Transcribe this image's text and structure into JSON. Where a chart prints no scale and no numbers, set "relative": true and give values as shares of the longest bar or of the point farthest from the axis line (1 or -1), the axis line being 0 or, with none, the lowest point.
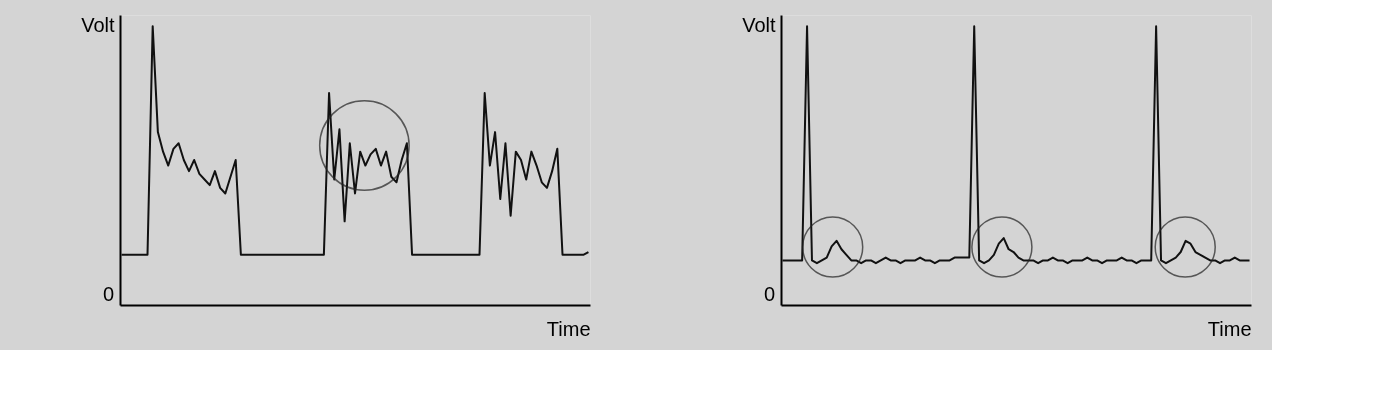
{
  "chart_data": [
    {
      "type": "line",
      "relative": true,
      "ylabel": "Volt",
      "xlabel": "Time",
      "annotations": [
        "0"
      ],
      "line_style": "solid",
      "categories": [
        null,
        null,
        null,
        null,
        null,
        null,
        null,
        null,
        null,
        null,
        null,
        null,
        null,
        null,
        null,
        null,
        null,
        null,
        null,
        null,
        null,
        null,
        null,
        null,
        null,
        null,
        null,
        null,
        null,
        null,
        null,
        null,
        null,
        null,
        null,
        null,
        null,
        null,
        null,
        null,
        null,
        null,
        null,
        null,
        null,
        null,
        null,
        null,
        null,
        null,
        null,
        null,
        null,
        null,
        null,
        null,
        null,
        null,
        null,
        null,
        null,
        null,
        null,
        null,
        null,
        null,
        null,
        null,
        null,
        null,
        null,
        null,
        null,
        null,
        null,
        null,
        null,
        null,
        null,
        null,
        null,
        null,
        null,
        null,
        null,
        null,
        null,
        null,
        null,
        null,
        null
      ],
      "series": [
        {
          "color": "#111111",
          "values": [
            0.18,
            0.18,
            0.18,
            0.18,
            0.18,
            0.18,
            1.0,
            0.62,
            0.55,
            0.5,
            0.56,
            0.58,
            0.52,
            0.48,
            0.52,
            0.47,
            0.45,
            0.43,
            0.48,
            0.42,
            0.4,
            0.46,
            0.52,
            0.18,
            0.18,
            0.18,
            0.18,
            0.18,
            0.18,
            0.18,
            0.18,
            0.18,
            0.18,
            0.18,
            0.18,
            0.18,
            0.18,
            0.18,
            0.18,
            0.18,
            0.76,
            0.45,
            0.63,
            0.3,
            0.58,
            0.4,
            0.55,
            0.5,
            0.54,
            0.56,
            0.5,
            0.55,
            0.46,
            0.44,
            0.52,
            0.58,
            0.18,
            0.18,
            0.18,
            0.18,
            0.18,
            0.18,
            0.18,
            0.18,
            0.18,
            0.18,
            0.18,
            0.18,
            0.18,
            0.18,
            0.76,
            0.5,
            0.62,
            0.38,
            0.58,
            0.32,
            0.55,
            0.52,
            0.45,
            0.55,
            0.5,
            0.44,
            0.42,
            0.48,
            0.56,
            0.18,
            0.18,
            0.18,
            0.18,
            0.18,
            0.19
          ]
        }
      ]
    },
    {
      "type": "line",
      "relative": true,
      "ylabel": "Volt",
      "xlabel": "Time",
      "annotations": [
        "0"
      ],
      "line_style": "solid",
      "categories": [
        null,
        null,
        null,
        null,
        null,
        null,
        null,
        null,
        null,
        null,
        null,
        null,
        null,
        null,
        null,
        null,
        null,
        null,
        null,
        null,
        null,
        null,
        null,
        null,
        null,
        null,
        null,
        null,
        null,
        null,
        null,
        null,
        null,
        null,
        null,
        null,
        null,
        null,
        null,
        null,
        null,
        null,
        null,
        null,
        null,
        null,
        null,
        null,
        null,
        null,
        null,
        null,
        null,
        null,
        null,
        null,
        null,
        null,
        null,
        null,
        null,
        null,
        null,
        null,
        null,
        null,
        null,
        null,
        null,
        null,
        null,
        null,
        null,
        null,
        null,
        null,
        null,
        null,
        null,
        null,
        null,
        null,
        null,
        null,
        null,
        null,
        null,
        null,
        null,
        null,
        null,
        null,
        null,
        null,
        null,
        null
      ],
      "series": [
        {
          "color": "#111111",
          "values": [
            0.16,
            0.16,
            0.16,
            0.16,
            0.16,
            1.0,
            0.16,
            0.15,
            0.16,
            0.17,
            0.21,
            0.23,
            0.2,
            0.18,
            0.16,
            0.16,
            0.15,
            0.16,
            0.16,
            0.15,
            0.16,
            0.17,
            0.16,
            0.16,
            0.15,
            0.16,
            0.16,
            0.16,
            0.17,
            0.16,
            0.16,
            0.15,
            0.16,
            0.16,
            0.16,
            0.17,
            0.17,
            0.17,
            0.17,
            1.0,
            0.16,
            0.15,
            0.16,
            0.18,
            0.22,
            0.24,
            0.2,
            0.19,
            0.17,
            0.16,
            0.16,
            0.16,
            0.15,
            0.16,
            0.16,
            0.17,
            0.16,
            0.16,
            0.15,
            0.16,
            0.16,
            0.16,
            0.17,
            0.16,
            0.16,
            0.15,
            0.16,
            0.16,
            0.16,
            0.17,
            0.16,
            0.16,
            0.15,
            0.16,
            0.16,
            0.16,
            1.0,
            0.16,
            0.15,
            0.16,
            0.17,
            0.19,
            0.23,
            0.22,
            0.19,
            0.18,
            0.17,
            0.16,
            0.16,
            0.15,
            0.16,
            0.16,
            0.17,
            0.16,
            0.16,
            0.16
          ]
        }
      ]
    }
  ]
}
